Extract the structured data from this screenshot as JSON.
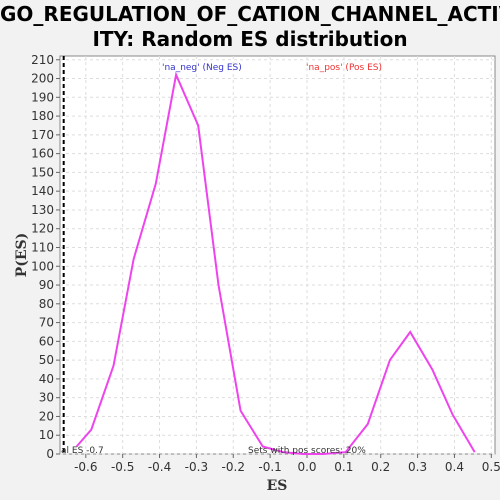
{
  "chart_data": {
    "type": "line",
    "title_line1": "GO_REGULATION_OF_CATION_CHANNEL_ACTIV",
    "title_line2": "ITY: Random ES distribution",
    "xlabel": "ES",
    "ylabel": "P(ES)",
    "xlim": [
      -0.67,
      0.51
    ],
    "ylim": [
      0,
      212
    ],
    "x_ticks": [
      -0.6,
      -0.5,
      -0.4,
      -0.3,
      -0.2,
      -0.1,
      0.0,
      0.1,
      0.2,
      0.3,
      0.4,
      0.5
    ],
    "x_tick_labels": [
      "-0.6",
      "-0.5",
      "-0.4",
      "-0.3",
      "-0.2",
      "-0.1",
      "0.0",
      "0.1",
      "0.2",
      "0.3",
      "0.4",
      "0.5"
    ],
    "y_ticks": [
      0,
      10,
      20,
      30,
      40,
      50,
      60,
      70,
      80,
      90,
      100,
      110,
      120,
      130,
      140,
      150,
      160,
      170,
      180,
      190,
      200,
      210
    ],
    "grid": true,
    "series": [
      {
        "color": "#ee44ee",
        "x": [
          -0.625,
          -0.585,
          -0.525,
          -0.47,
          -0.41,
          -0.355,
          -0.295,
          -0.24,
          -0.18,
          -0.12,
          -0.065,
          -0.01,
          0.045,
          0.105,
          0.165,
          0.225,
          0.28,
          0.34,
          0.395,
          0.455
        ],
        "y": [
          4,
          13,
          47,
          104,
          144,
          202,
          175,
          90,
          23,
          4,
          1,
          0,
          0,
          1,
          16,
          50,
          65,
          45,
          21,
          1
        ]
      }
    ],
    "actual_es_line": {
      "x": -0.66,
      "label": "al ES -0.7"
    },
    "legend": [
      {
        "text": "'na_neg' (Neg ES)",
        "color": "#3333cc"
      },
      {
        "text": "'na_pos' (Pos ES)",
        "color": "#ee3333"
      }
    ],
    "annotation": "Sets with pos scores: 20%"
  }
}
